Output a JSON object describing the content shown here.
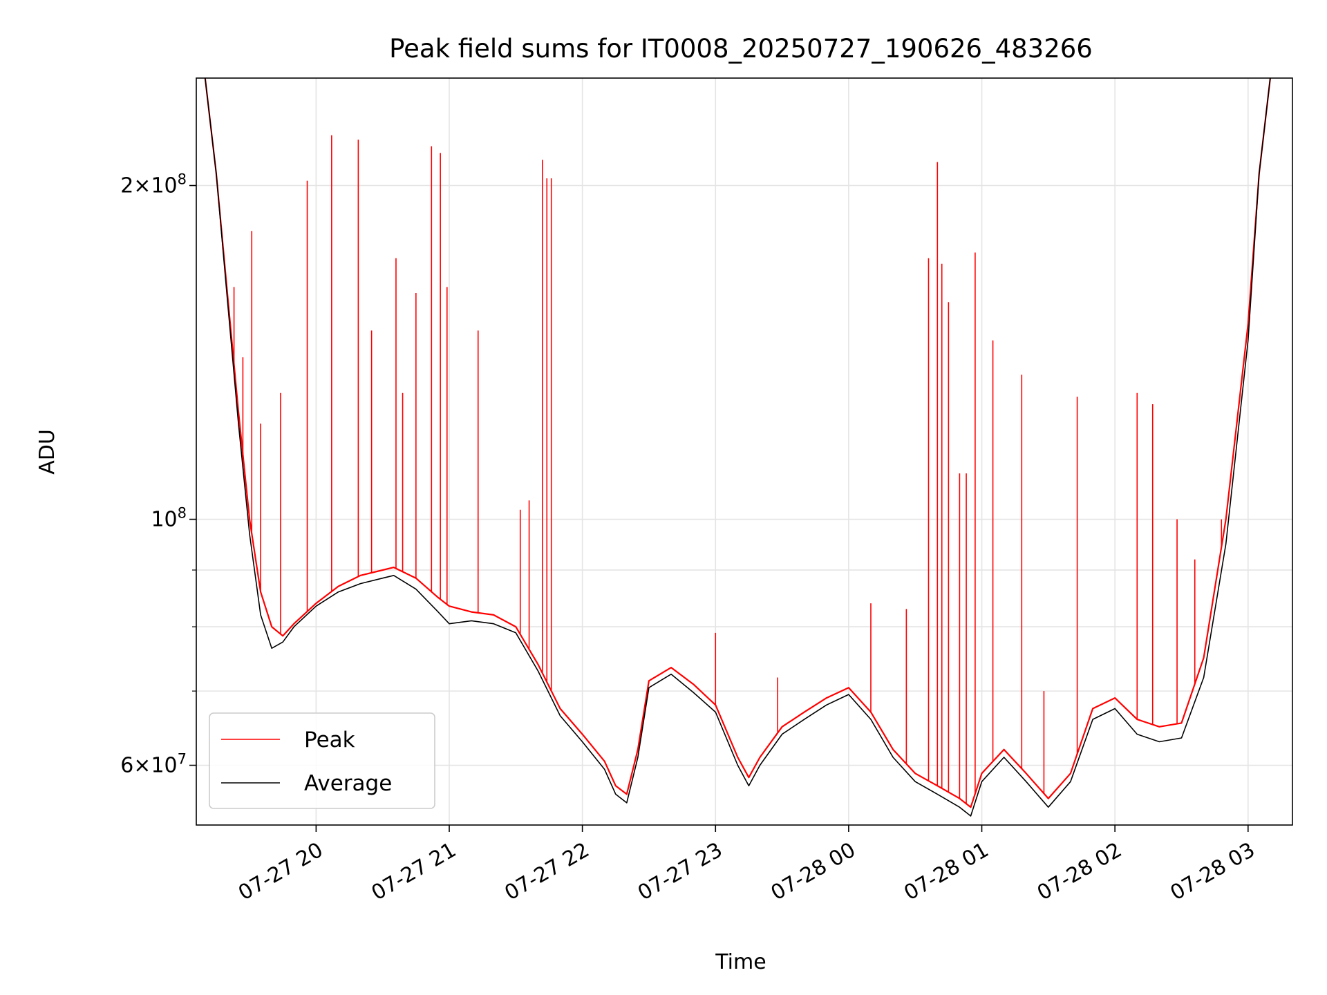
{
  "chart_data": {
    "type": "line",
    "title": "Peak field sums for IT0008_20250727_190626_483266",
    "xlabel": "Time",
    "ylabel": "ADU",
    "y_scale": "log",
    "ylim": [
      53000000,
      250000000
    ],
    "xlim": [
      "2025-07-27 19:06",
      "2025-07-28 03:20"
    ],
    "grid": true,
    "legend_position": "lower left",
    "x_ticks": [
      "2025-07-27 20:00",
      "2025-07-27 21:00",
      "2025-07-27 22:00",
      "2025-07-27 23:00",
      "2025-07-28 00:00",
      "2025-07-28 01:00",
      "2025-07-28 02:00",
      "2025-07-28 03:00"
    ],
    "x_tick_labels": [
      "07-27 20",
      "07-27 21",
      "07-27 22",
      "07-27 23",
      "07-28 00",
      "07-28 01",
      "07-28 02",
      "07-28 03"
    ],
    "y_ticks_major": [
      60000000,
      100000000,
      200000000
    ],
    "y_tick_labels": [
      {
        "mantissa": "6",
        "exponent": "7"
      },
      {
        "mantissa": "",
        "exponent": "8"
      },
      {
        "mantissa": "2",
        "exponent": "8"
      }
    ],
    "y_ticks_minor": [
      70000000,
      80000000,
      90000000
    ],
    "series": [
      {
        "name": "Peak",
        "color": "#ff0000",
        "baseline_note": "",
        "x": [
          "2025-07-27 19:10",
          "2025-07-27 19:15",
          "2025-07-27 19:20",
          "2025-07-27 19:25",
          "2025-07-27 19:30",
          "2025-07-27 19:35",
          "2025-07-27 19:40",
          "2025-07-27 19:45",
          "2025-07-27 19:50",
          "2025-07-27 20:00",
          "2025-07-27 20:10",
          "2025-07-27 20:20",
          "2025-07-27 20:30",
          "2025-07-27 20:35",
          "2025-07-27 20:45",
          "2025-07-27 20:55",
          "2025-07-27 21:00",
          "2025-07-27 21:10",
          "2025-07-27 21:20",
          "2025-07-27 21:30",
          "2025-07-27 21:40",
          "2025-07-27 21:50",
          "2025-07-27 22:00",
          "2025-07-27 22:10",
          "2025-07-27 22:15",
          "2025-07-27 22:20",
          "2025-07-27 22:25",
          "2025-07-27 22:30",
          "2025-07-27 22:40",
          "2025-07-27 22:50",
          "2025-07-27 23:00",
          "2025-07-27 23:10",
          "2025-07-27 23:15",
          "2025-07-27 23:20",
          "2025-07-27 23:30",
          "2025-07-27 23:40",
          "2025-07-27 23:50",
          "2025-07-28 00:00",
          "2025-07-28 00:10",
          "2025-07-28 00:20",
          "2025-07-28 00:30",
          "2025-07-28 00:40",
          "2025-07-28 00:50",
          "2025-07-28 00:55",
          "2025-07-28 01:00",
          "2025-07-28 01:10",
          "2025-07-28 01:20",
          "2025-07-28 01:30",
          "2025-07-28 01:40",
          "2025-07-28 01:50",
          "2025-07-28 02:00",
          "2025-07-28 02:10",
          "2025-07-28 02:20",
          "2025-07-28 02:30",
          "2025-07-28 02:40",
          "2025-07-28 02:50",
          "2025-07-28 03:00",
          "2025-07-28 03:05",
          "2025-07-28 03:10"
        ],
        "y": [
          250000000,
          205000000,
          160000000,
          125000000,
          100000000,
          86000000,
          80000000,
          78500000,
          80500000,
          84000000,
          87000000,
          89000000,
          90000000,
          90500000,
          88500000,
          85000000,
          83500000,
          82500000,
          82000000,
          80000000,
          74000000,
          67500000,
          64000000,
          60500000,
          57500000,
          56500000,
          62000000,
          71500000,
          73500000,
          71000000,
          68000000,
          61000000,
          58500000,
          61000000,
          65000000,
          67000000,
          69000000,
          70500000,
          67000000,
          62000000,
          59000000,
          57500000,
          56000000,
          55000000,
          59000000,
          62000000,
          59000000,
          56000000,
          59000000,
          67500000,
          69000000,
          66000000,
          65000000,
          65500000,
          75000000,
          100000000,
          150000000,
          205000000,
          250000000
        ],
        "spikes": [
          {
            "x": "2025-07-27 19:23",
            "y": 162000000
          },
          {
            "x": "2025-07-27 19:27",
            "y": 140000000
          },
          {
            "x": "2025-07-27 19:31",
            "y": 182000000
          },
          {
            "x": "2025-07-27 19:35",
            "y": 122000000
          },
          {
            "x": "2025-07-27 19:44",
            "y": 130000000
          },
          {
            "x": "2025-07-27 19:56",
            "y": 202000000
          },
          {
            "x": "2025-07-27 20:07",
            "y": 222000000
          },
          {
            "x": "2025-07-27 20:19",
            "y": 220000000
          },
          {
            "x": "2025-07-27 20:25",
            "y": 148000000
          },
          {
            "x": "2025-07-27 20:36",
            "y": 172000000
          },
          {
            "x": "2025-07-27 20:39",
            "y": 130000000
          },
          {
            "x": "2025-07-27 20:45",
            "y": 160000000
          },
          {
            "x": "2025-07-27 20:52",
            "y": 217000000
          },
          {
            "x": "2025-07-27 20:56",
            "y": 214000000
          },
          {
            "x": "2025-07-27 20:59",
            "y": 162000000
          },
          {
            "x": "2025-07-27 21:13",
            "y": 148000000
          },
          {
            "x": "2025-07-27 21:32",
            "y": 102000000
          },
          {
            "x": "2025-07-27 21:36",
            "y": 104000000
          },
          {
            "x": "2025-07-27 21:42",
            "y": 211000000
          },
          {
            "x": "2025-07-27 21:44",
            "y": 203000000
          },
          {
            "x": "2025-07-27 21:46",
            "y": 203000000
          },
          {
            "x": "2025-07-27 23:00",
            "y": 79000000
          },
          {
            "x": "2025-07-27 23:28",
            "y": 72000000
          },
          {
            "x": "2025-07-28 00:10",
            "y": 84000000
          },
          {
            "x": "2025-07-28 00:26",
            "y": 83000000
          },
          {
            "x": "2025-07-28 00:36",
            "y": 172000000
          },
          {
            "x": "2025-07-28 00:40",
            "y": 210000000
          },
          {
            "x": "2025-07-28 00:42",
            "y": 170000000
          },
          {
            "x": "2025-07-28 00:45",
            "y": 157000000
          },
          {
            "x": "2025-07-28 00:50",
            "y": 110000000
          },
          {
            "x": "2025-07-28 00:53",
            "y": 110000000
          },
          {
            "x": "2025-07-28 00:57",
            "y": 174000000
          },
          {
            "x": "2025-07-28 01:05",
            "y": 145000000
          },
          {
            "x": "2025-07-28 01:18",
            "y": 135000000
          },
          {
            "x": "2025-07-28 01:28",
            "y": 70000000
          },
          {
            "x": "2025-07-28 01:43",
            "y": 129000000
          },
          {
            "x": "2025-07-28 02:10",
            "y": 130000000
          },
          {
            "x": "2025-07-28 02:17",
            "y": 127000000
          },
          {
            "x": "2025-07-28 02:28",
            "y": 100000000
          },
          {
            "x": "2025-07-28 02:36",
            "y": 92000000
          },
          {
            "x": "2025-07-28 02:48",
            "y": 100000000
          }
        ]
      },
      {
        "name": "Average",
        "color": "#000000",
        "x": [
          "2025-07-27 19:10",
          "2025-07-27 19:15",
          "2025-07-27 19:20",
          "2025-07-27 19:25",
          "2025-07-27 19:30",
          "2025-07-27 19:35",
          "2025-07-27 19:40",
          "2025-07-27 19:45",
          "2025-07-27 19:50",
          "2025-07-27 20:00",
          "2025-07-27 20:10",
          "2025-07-27 20:20",
          "2025-07-27 20:30",
          "2025-07-27 20:35",
          "2025-07-27 20:45",
          "2025-07-27 20:55",
          "2025-07-27 21:00",
          "2025-07-27 21:10",
          "2025-07-27 21:20",
          "2025-07-27 21:30",
          "2025-07-27 21:40",
          "2025-07-27 21:50",
          "2025-07-27 22:00",
          "2025-07-27 22:10",
          "2025-07-27 22:15",
          "2025-07-27 22:20",
          "2025-07-27 22:25",
          "2025-07-27 22:30",
          "2025-07-27 22:40",
          "2025-07-27 22:50",
          "2025-07-27 23:00",
          "2025-07-27 23:10",
          "2025-07-27 23:15",
          "2025-07-27 23:20",
          "2025-07-27 23:30",
          "2025-07-27 23:40",
          "2025-07-27 23:50",
          "2025-07-28 00:00",
          "2025-07-28 00:10",
          "2025-07-28 00:20",
          "2025-07-28 00:30",
          "2025-07-28 00:40",
          "2025-07-28 00:50",
          "2025-07-28 00:55",
          "2025-07-28 01:00",
          "2025-07-28 01:10",
          "2025-07-28 01:20",
          "2025-07-28 01:30",
          "2025-07-28 01:40",
          "2025-07-28 01:50",
          "2025-07-28 02:00",
          "2025-07-28 02:10",
          "2025-07-28 02:20",
          "2025-07-28 02:30",
          "2025-07-28 02:40",
          "2025-07-28 02:50",
          "2025-07-28 03:00",
          "2025-07-28 03:05",
          "2025-07-28 03:10"
        ],
        "y": [
          250000000,
          205000000,
          158000000,
          122000000,
          97000000,
          82000000,
          76500000,
          77500000,
          80000000,
          83500000,
          86000000,
          87500000,
          88500000,
          89000000,
          86500000,
          82500000,
          80500000,
          81000000,
          80500000,
          79000000,
          73000000,
          66500000,
          63000000,
          59500000,
          56500000,
          55500000,
          61000000,
          70500000,
          72500000,
          69800000,
          67000000,
          60000000,
          57500000,
          60000000,
          64000000,
          66000000,
          68000000,
          69500000,
          66000000,
          61000000,
          58000000,
          56500000,
          55000000,
          54000000,
          58000000,
          61000000,
          58000000,
          55000000,
          58000000,
          66000000,
          67500000,
          64000000,
          63000000,
          63500000,
          72000000,
          95000000,
          145000000,
          205000000,
          250000000
        ]
      }
    ]
  }
}
